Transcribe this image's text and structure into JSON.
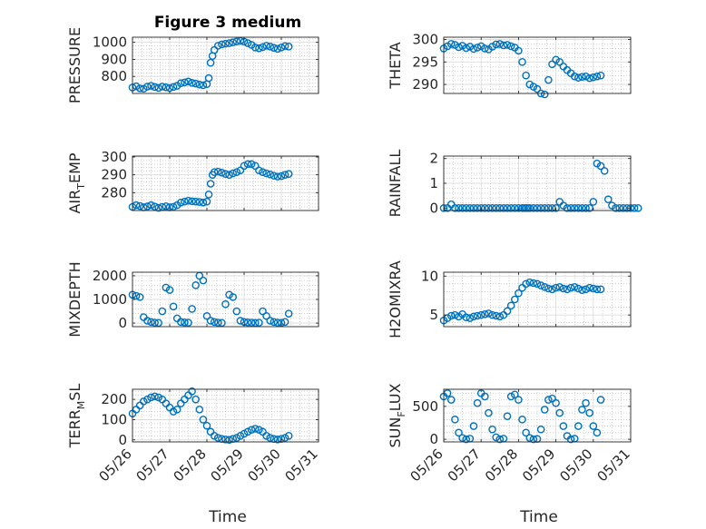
{
  "title": "Figure 3 medium",
  "xlabel": "Time",
  "xtick_labels": [
    "05/26",
    "05/27",
    "05/28",
    "05/29",
    "05/30",
    "05/31"
  ],
  "colors": {
    "marker": "#0072BD",
    "axis": "#262626",
    "grid": "#b0b0b0"
  },
  "chart_data": [
    {
      "type": "scatter",
      "ylabel": "PRESSURE",
      "ylim": [
        700,
        1030
      ],
      "yticks": [
        800,
        900,
        1000
      ],
      "xlim": [
        0,
        5
      ],
      "grid": true,
      "minor_grid": true,
      "x": [
        0.0,
        0.1,
        0.2,
        0.3,
        0.4,
        0.5,
        0.6,
        0.7,
        0.8,
        0.9,
        1.0,
        1.1,
        1.2,
        1.3,
        1.4,
        1.5,
        1.6,
        1.7,
        1.8,
        1.9,
        2.0,
        2.05,
        2.1,
        2.15,
        2.2,
        2.3,
        2.4,
        2.5,
        2.6,
        2.7,
        2.8,
        2.9,
        3.0,
        3.1,
        3.2,
        3.3,
        3.4,
        3.5,
        3.6,
        3.7,
        3.8,
        3.9,
        4.0,
        4.1,
        4.2
      ],
      "y": [
        735,
        742,
        730,
        728,
        740,
        745,
        738,
        733,
        740,
        736,
        732,
        738,
        745,
        760,
        765,
        770,
        762,
        758,
        752,
        748,
        755,
        790,
        880,
        920,
        955,
        980,
        988,
        992,
        995,
        1000,
        1005,
        1008,
        1004,
        995,
        985,
        970,
        965,
        972,
        980,
        975,
        968,
        962,
        970,
        978,
        975
      ]
    },
    {
      "type": "scatter",
      "ylabel": "THETA",
      "ylim": [
        288,
        300.5
      ],
      "yticks": [
        290,
        295,
        300
      ],
      "xlim": [
        0,
        5
      ],
      "grid": true,
      "minor_grid": true,
      "x": [
        0.0,
        0.1,
        0.2,
        0.3,
        0.4,
        0.5,
        0.6,
        0.7,
        0.8,
        0.9,
        1.0,
        1.1,
        1.2,
        1.3,
        1.4,
        1.5,
        1.6,
        1.7,
        1.8,
        1.9,
        2.0,
        2.1,
        2.2,
        2.3,
        2.4,
        2.5,
        2.6,
        2.7,
        2.8,
        2.9,
        3.0,
        3.1,
        3.2,
        3.3,
        3.4,
        3.5,
        3.6,
        3.7,
        3.8,
        3.9,
        4.0,
        4.1,
        4.2
      ],
      "y": [
        298.0,
        298.5,
        299.0,
        298.8,
        298.3,
        298.6,
        298.1,
        298.4,
        297.9,
        298.2,
        298.5,
        298.0,
        297.8,
        298.4,
        298.9,
        299.0,
        298.7,
        298.8,
        298.5,
        298.2,
        297.5,
        295.0,
        292.0,
        290.0,
        289.5,
        289.0,
        288.0,
        287.8,
        291.0,
        294.5,
        295.5,
        295.0,
        294.0,
        293.2,
        292.5,
        291.8,
        291.5,
        291.7,
        291.8,
        291.4,
        291.6,
        291.8,
        292.0
      ]
    },
    {
      "type": "scatter",
      "ylabel": "AIR_TEMP",
      "ylim": [
        270,
        300.5
      ],
      "yticks": [
        280,
        290,
        300
      ],
      "xlim": [
        0,
        5
      ],
      "grid": true,
      "minor_grid": true,
      "x": [
        0.0,
        0.1,
        0.2,
        0.3,
        0.4,
        0.5,
        0.6,
        0.7,
        0.8,
        0.9,
        1.0,
        1.1,
        1.2,
        1.3,
        1.4,
        1.5,
        1.6,
        1.7,
        1.8,
        1.9,
        2.0,
        2.05,
        2.1,
        2.15,
        2.2,
        2.3,
        2.4,
        2.5,
        2.6,
        2.7,
        2.8,
        2.9,
        3.0,
        3.1,
        3.2,
        3.3,
        3.4,
        3.5,
        3.6,
        3.7,
        3.8,
        3.9,
        4.0,
        4.1,
        4.2
      ],
      "y": [
        272,
        273,
        272.5,
        271.8,
        272.3,
        273,
        272.2,
        271.5,
        272.0,
        272.4,
        271.8,
        272.1,
        273,
        274.5,
        275,
        275.5,
        275.2,
        275.0,
        274.8,
        274.5,
        275,
        279,
        285,
        290,
        291.5,
        291.8,
        291.2,
        290.5,
        290.0,
        290.8,
        291.5,
        292.5,
        295,
        296,
        296,
        295,
        292.5,
        291.5,
        290.8,
        290.2,
        289.5,
        289.0,
        289.3,
        290.0,
        290.5
      ]
    },
    {
      "type": "scatter",
      "ylabel": "RAINFALL",
      "ylim": [
        -0.1,
        2.1
      ],
      "yticks": [
        0,
        1,
        2
      ],
      "xlim": [
        0,
        5
      ],
      "grid": true,
      "minor_grid": true,
      "x": [
        0.0,
        0.1,
        0.2,
        0.3,
        0.4,
        0.5,
        0.6,
        0.7,
        0.8,
        0.9,
        1.0,
        1.1,
        1.2,
        1.3,
        1.4,
        1.5,
        1.6,
        1.7,
        1.8,
        1.9,
        2.0,
        2.1,
        2.15,
        2.2,
        2.25,
        2.3,
        2.4,
        2.5,
        2.6,
        2.7,
        2.8,
        2.9,
        3.0,
        3.1,
        3.2,
        3.3,
        3.4,
        3.5,
        3.6,
        3.7,
        3.8,
        3.9,
        4.0,
        4.1,
        4.2,
        4.3,
        4.4,
        4.5,
        4.6,
        4.7,
        4.8,
        4.9,
        5.0,
        5.1,
        5.2
      ],
      "y": [
        0,
        0,
        0.15,
        0,
        0,
        0,
        0,
        0,
        0,
        0,
        0,
        0,
        0,
        0,
        0,
        0,
        0,
        0,
        0,
        0,
        0,
        0,
        0,
        0,
        0,
        0,
        0,
        0,
        0,
        0,
        0,
        0,
        0,
        0.25,
        0.1,
        0,
        0,
        0,
        0,
        0,
        0,
        0,
        0.25,
        1.8,
        1.7,
        1.5,
        0.35,
        0.1,
        0,
        0,
        0,
        0,
        0,
        0,
        0
      ]
    },
    {
      "type": "scatter",
      "ylabel": "MIXDEPTH",
      "ylim": [
        -150,
        2150
      ],
      "yticks": [
        0,
        1000,
        2000
      ],
      "xlim": [
        0,
        5
      ],
      "grid": true,
      "minor_grid": true,
      "x": [
        0.0,
        0.1,
        0.2,
        0.3,
        0.4,
        0.5,
        0.6,
        0.7,
        0.8,
        0.9,
        1.0,
        1.1,
        1.2,
        1.3,
        1.4,
        1.5,
        1.6,
        1.7,
        1.8,
        1.9,
        2.0,
        2.1,
        2.2,
        2.3,
        2.4,
        2.5,
        2.6,
        2.7,
        2.8,
        2.9,
        3.0,
        3.1,
        3.2,
        3.3,
        3.4,
        3.5,
        3.6,
        3.7,
        3.8,
        3.9,
        4.0,
        4.1,
        4.2
      ],
      "y": [
        1200,
        1150,
        1100,
        250,
        100,
        50,
        20,
        10,
        500,
        1500,
        1400,
        700,
        200,
        50,
        30,
        20,
        600,
        1600,
        2000,
        1800,
        300,
        100,
        50,
        20,
        10,
        800,
        1200,
        1100,
        500,
        100,
        50,
        30,
        20,
        10,
        20,
        500,
        300,
        100,
        50,
        20,
        10,
        50,
        400
      ]
    },
    {
      "type": "scatter",
      "ylabel": "H2OMIXRA",
      "ylim": [
        3.5,
        10.5
      ],
      "yticks": [
        5,
        10
      ],
      "xlim": [
        0,
        5
      ],
      "grid": true,
      "minor_grid": true,
      "x": [
        0.0,
        0.1,
        0.2,
        0.3,
        0.4,
        0.5,
        0.6,
        0.7,
        0.8,
        0.9,
        1.0,
        1.1,
        1.2,
        1.3,
        1.4,
        1.5,
        1.6,
        1.7,
        1.8,
        1.9,
        2.0,
        2.1,
        2.2,
        2.3,
        2.4,
        2.5,
        2.6,
        2.7,
        2.8,
        2.9,
        3.0,
        3.1,
        3.2,
        3.3,
        3.4,
        3.5,
        3.6,
        3.7,
        3.8,
        3.9,
        4.0,
        4.1,
        4.2
      ],
      "y": [
        4.3,
        4.6,
        4.9,
        5.0,
        4.8,
        5.1,
        4.7,
        4.6,
        4.8,
        4.9,
        5.0,
        5.1,
        5.2,
        5.0,
        4.9,
        4.8,
        5.0,
        5.5,
        6.2,
        7.0,
        7.8,
        8.5,
        9.0,
        9.2,
        9.1,
        9.0,
        8.8,
        8.6,
        8.4,
        8.3,
        8.5,
        8.6,
        8.4,
        8.3,
        8.5,
        8.6,
        8.4,
        8.2,
        8.3,
        8.5,
        8.4,
        8.3,
        8.3
      ]
    },
    {
      "type": "scatter",
      "ylabel": "TERR_MSL",
      "ylim": [
        -10,
        250
      ],
      "yticks": [
        0,
        100,
        200
      ],
      "xlim": [
        0,
        5
      ],
      "grid": true,
      "minor_grid": true,
      "x": [
        0.0,
        0.1,
        0.2,
        0.3,
        0.4,
        0.5,
        0.6,
        0.7,
        0.8,
        0.9,
        1.0,
        1.1,
        1.2,
        1.3,
        1.4,
        1.5,
        1.6,
        1.7,
        1.8,
        1.9,
        2.0,
        2.1,
        2.2,
        2.3,
        2.4,
        2.5,
        2.6,
        2.7,
        2.8,
        2.9,
        3.0,
        3.1,
        3.2,
        3.3,
        3.4,
        3.5,
        3.6,
        3.7,
        3.8,
        3.9,
        4.0,
        4.1,
        4.2
      ],
      "y": [
        130,
        150,
        170,
        190,
        200,
        210,
        215,
        210,
        200,
        180,
        160,
        140,
        150,
        180,
        200,
        220,
        240,
        200,
        150,
        100,
        70,
        40,
        20,
        10,
        5,
        2,
        0,
        5,
        10,
        20,
        30,
        40,
        50,
        55,
        50,
        40,
        20,
        10,
        5,
        2,
        5,
        10,
        20
      ]
    },
    {
      "type": "scatter",
      "ylabel": "SUN_FLUX",
      "ylim": [
        -40,
        760
      ],
      "yticks": [
        0,
        500
      ],
      "xlim": [
        0,
        5
      ],
      "grid": true,
      "minor_grid": true,
      "x": [
        0.0,
        0.1,
        0.2,
        0.3,
        0.4,
        0.5,
        0.6,
        0.7,
        0.8,
        0.9,
        1.0,
        1.1,
        1.2,
        1.3,
        1.4,
        1.5,
        1.6,
        1.7,
        1.8,
        1.9,
        2.0,
        2.1,
        2.2,
        2.3,
        2.4,
        2.5,
        2.6,
        2.7,
        2.8,
        2.9,
        3.0,
        3.1,
        3.2,
        3.3,
        3.4,
        3.5,
        3.6,
        3.7,
        3.8,
        3.9,
        4.0,
        4.1,
        4.2
      ],
      "y": [
        650,
        700,
        600,
        300,
        100,
        20,
        0,
        10,
        200,
        550,
        700,
        650,
        400,
        150,
        30,
        0,
        10,
        350,
        650,
        680,
        600,
        300,
        100,
        20,
        0,
        5,
        150,
        450,
        600,
        620,
        550,
        400,
        200,
        50,
        0,
        10,
        200,
        450,
        550,
        400,
        200,
        100,
        600
      ]
    }
  ]
}
